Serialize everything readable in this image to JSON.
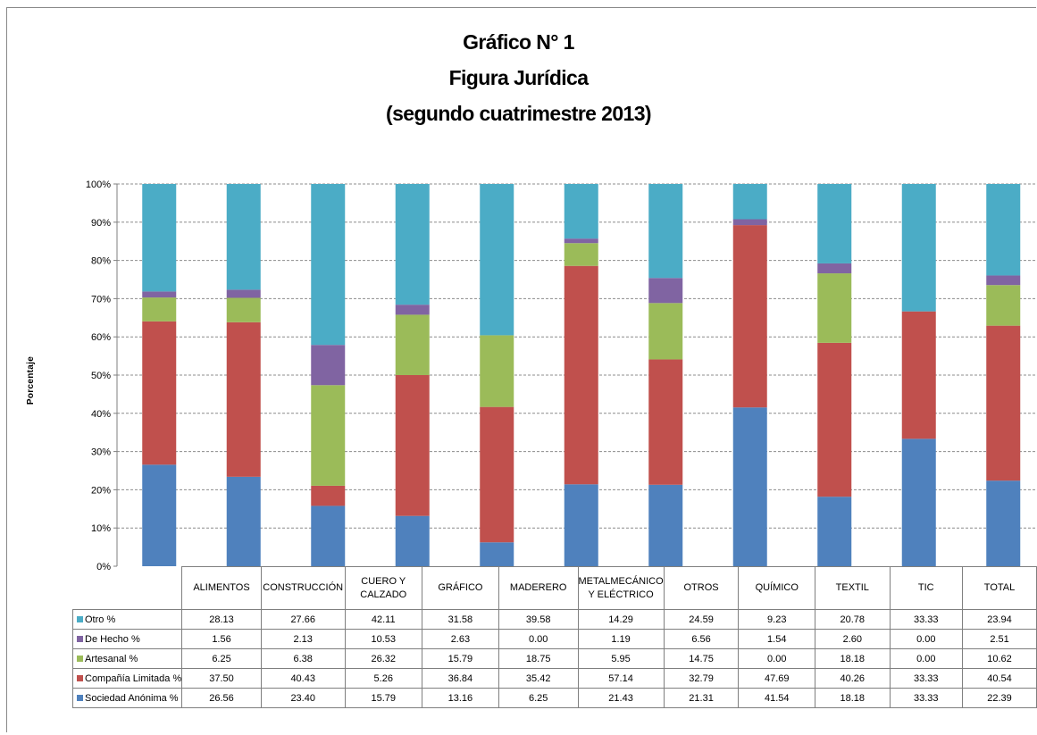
{
  "title": {
    "line1": "Gráfico N° 1",
    "line2": "Figura Jurídica",
    "line3": "(segundo cuatrimestre 2013)"
  },
  "chart_data": {
    "type": "bar",
    "stacked": "percent",
    "categories": [
      "ALIMENTOS",
      "CONSTRUCCIÓN",
      "CUERO Y CALZADO",
      "GRÁFICO",
      "MADERERO",
      "METALMECÁNICO Y ELÉCTRICO",
      "OTROS",
      "QUÍMICO",
      "TEXTIL",
      "TIC",
      "TOTAL"
    ],
    "series": [
      {
        "name": "Sociedad Anónima %",
        "color": "#4f81bd",
        "values": [
          26.56,
          23.4,
          15.79,
          13.16,
          6.25,
          21.43,
          21.31,
          41.54,
          18.18,
          33.33,
          22.39
        ]
      },
      {
        "name": "Compañía Limitada %",
        "color": "#c0504d",
        "values": [
          37.5,
          40.43,
          5.26,
          36.84,
          35.42,
          57.14,
          32.79,
          47.69,
          40.26,
          33.33,
          40.54
        ]
      },
      {
        "name": "Artesanal %",
        "color": "#9bbb59",
        "values": [
          6.25,
          6.38,
          26.32,
          15.79,
          18.75,
          5.95,
          14.75,
          0.0,
          18.18,
          0.0,
          10.62
        ]
      },
      {
        "name": "De Hecho %",
        "color": "#8064a2",
        "values": [
          1.56,
          2.13,
          10.53,
          2.63,
          0.0,
          1.19,
          6.56,
          1.54,
          2.6,
          0.0,
          2.51
        ]
      },
      {
        "name": "Otro %",
        "color": "#4bacc6",
        "values": [
          28.13,
          27.66,
          42.11,
          31.58,
          39.58,
          14.29,
          24.59,
          9.23,
          20.78,
          33.33,
          23.94
        ]
      }
    ],
    "table_order": [
      "Otro %",
      "De Hecho %",
      "Artesanal %",
      "Compañía Limitada %",
      "Sociedad Anónima %"
    ],
    "ylabel": "Porcentaje",
    "yticks": [
      "0%",
      "10%",
      "20%",
      "30%",
      "40%",
      "50%",
      "60%",
      "70%",
      "80%",
      "90%",
      "100%"
    ],
    "ylim": [
      0,
      100
    ],
    "grid": true,
    "legend": "data-table"
  }
}
